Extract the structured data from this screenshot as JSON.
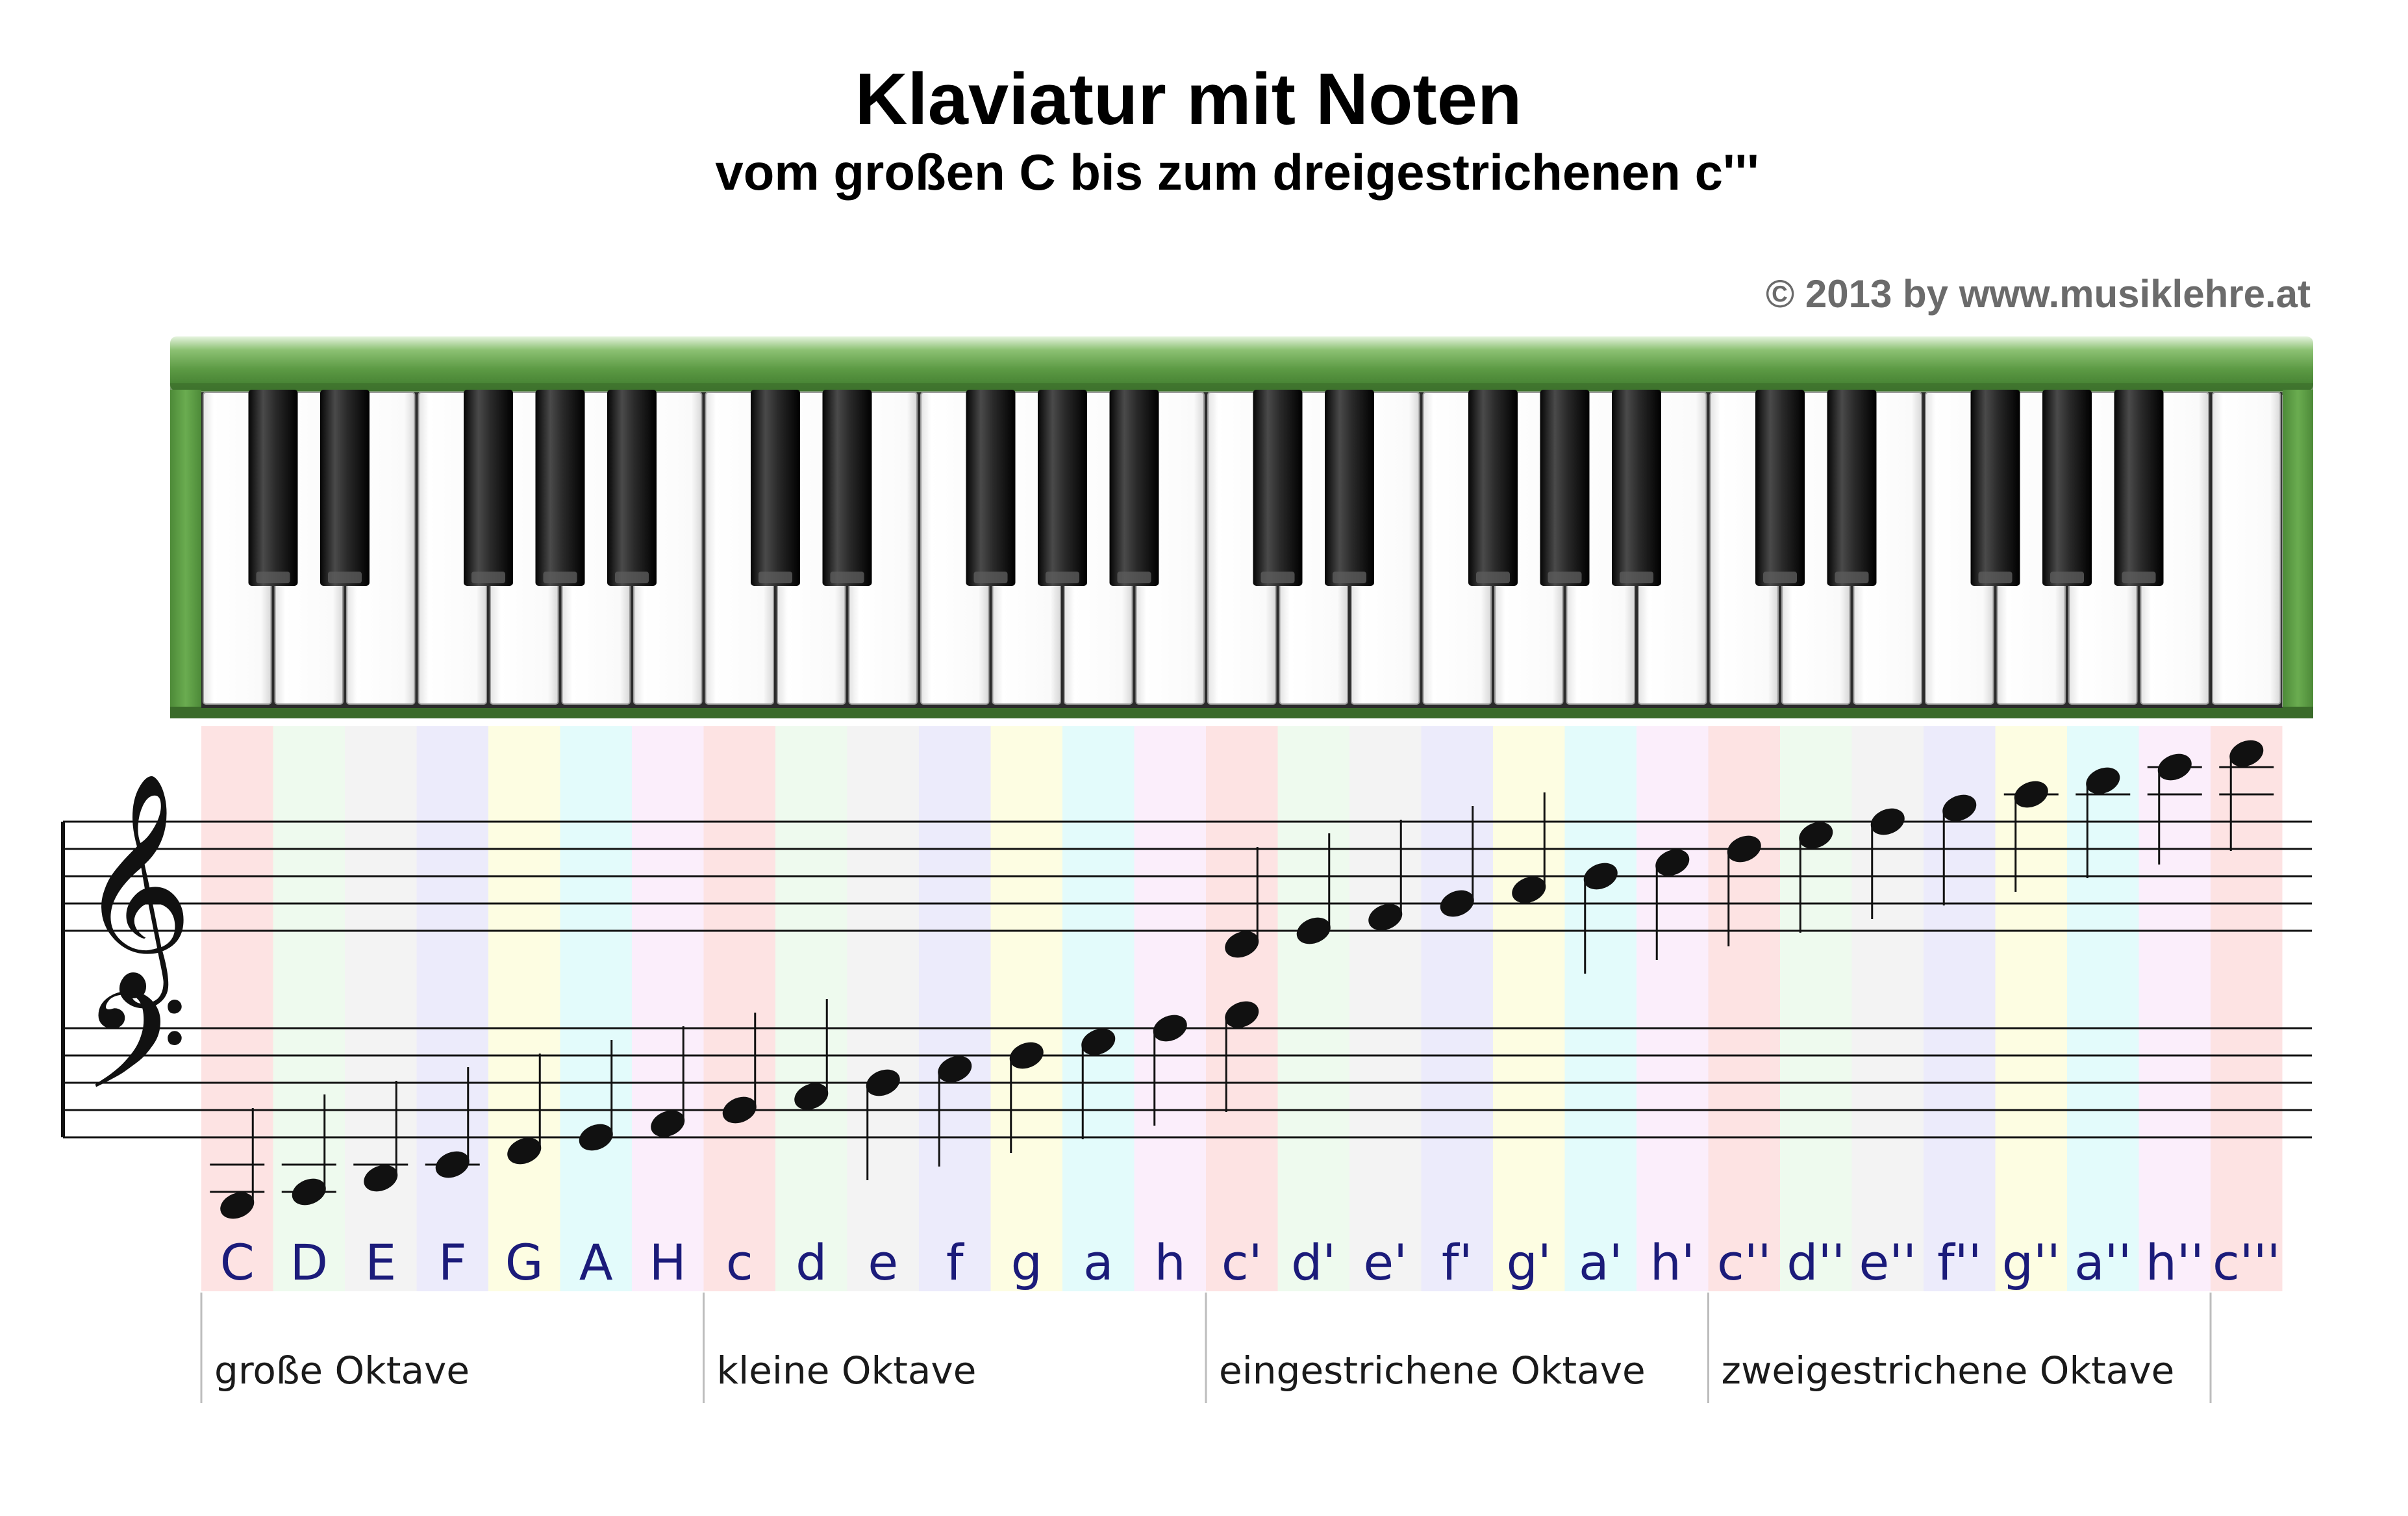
{
  "title": "Klaviatur mit Noten",
  "subtitle": "vom großen C bis zum dreigestrichenen c'''",
  "copyright": "© 2013 by www.musiklehre.at",
  "keyboard": {
    "frame_color": "#5e9a46",
    "white_key_count": 29,
    "black_key_pattern": "C#, D#, F#, G#, A# per octave"
  },
  "notes": [
    {
      "name": "C",
      "clef": "bass",
      "step": -6,
      "color": "#fde3e3"
    },
    {
      "name": "D",
      "clef": "bass",
      "step": -5,
      "color": "#eefaee"
    },
    {
      "name": "E",
      "clef": "bass",
      "step": -4,
      "color": "#f3f3f3"
    },
    {
      "name": "F",
      "clef": "bass",
      "step": -3,
      "color": "#ecebfb"
    },
    {
      "name": "G",
      "clef": "bass",
      "step": -2,
      "color": "#fdfde2"
    },
    {
      "name": "A",
      "clef": "bass",
      "step": -1,
      "color": "#e3fbfb"
    },
    {
      "name": "H",
      "clef": "bass",
      "step": 0,
      "color": "#fbeefb"
    },
    {
      "name": "c",
      "clef": "bass",
      "step": 1,
      "color": "#fde3e3"
    },
    {
      "name": "d",
      "clef": "bass",
      "step": 2,
      "color": "#eefaee"
    },
    {
      "name": "e",
      "clef": "bass",
      "step": 3,
      "color": "#f3f3f3"
    },
    {
      "name": "f",
      "clef": "bass",
      "step": 4,
      "color": "#ecebfb"
    },
    {
      "name": "g",
      "clef": "bass",
      "step": 5,
      "color": "#fdfde2"
    },
    {
      "name": "a",
      "clef": "bass",
      "step": 6,
      "color": "#e3fbfb"
    },
    {
      "name": "h",
      "clef": "bass",
      "step": 7,
      "color": "#fbeefb"
    },
    {
      "name": "c'",
      "clef": "both",
      "step": 8,
      "color": "#fde3e3"
    },
    {
      "name": "d'",
      "clef": "treble",
      "step": 1,
      "color": "#eefaee"
    },
    {
      "name": "e'",
      "clef": "treble",
      "step": 2,
      "color": "#f3f3f3"
    },
    {
      "name": "f'",
      "clef": "treble",
      "step": 3,
      "color": "#ecebfb"
    },
    {
      "name": "g'",
      "clef": "treble",
      "step": 4,
      "color": "#fdfde2"
    },
    {
      "name": "a'",
      "clef": "treble",
      "step": 5,
      "color": "#e3fbfb"
    },
    {
      "name": "h'",
      "clef": "treble",
      "step": 6,
      "color": "#fbeefb"
    },
    {
      "name": "c''",
      "clef": "treble",
      "step": 7,
      "color": "#fde3e3"
    },
    {
      "name": "d''",
      "clef": "treble",
      "step": 8,
      "color": "#eefaee"
    },
    {
      "name": "e''",
      "clef": "treble",
      "step": 9,
      "color": "#f3f3f3"
    },
    {
      "name": "f''",
      "clef": "treble",
      "step": 10,
      "color": "#ecebfb"
    },
    {
      "name": "g''",
      "clef": "treble",
      "step": 11,
      "color": "#fdfde2"
    },
    {
      "name": "a''",
      "clef": "treble",
      "step": 12,
      "color": "#e3fbfb"
    },
    {
      "name": "h''",
      "clef": "treble",
      "step": 13,
      "color": "#fbeefb"
    },
    {
      "name": "c'''",
      "clef": "treble",
      "step": 14,
      "color": "#fde3e3"
    }
  ],
  "octaves": [
    {
      "label": "große Oktave",
      "first_note": 0
    },
    {
      "label": "kleine Oktave",
      "first_note": 7
    },
    {
      "label": "eingestrichene Oktave",
      "first_note": 14
    },
    {
      "label": "zweigestrichene Oktave",
      "first_note": 21
    }
  ]
}
